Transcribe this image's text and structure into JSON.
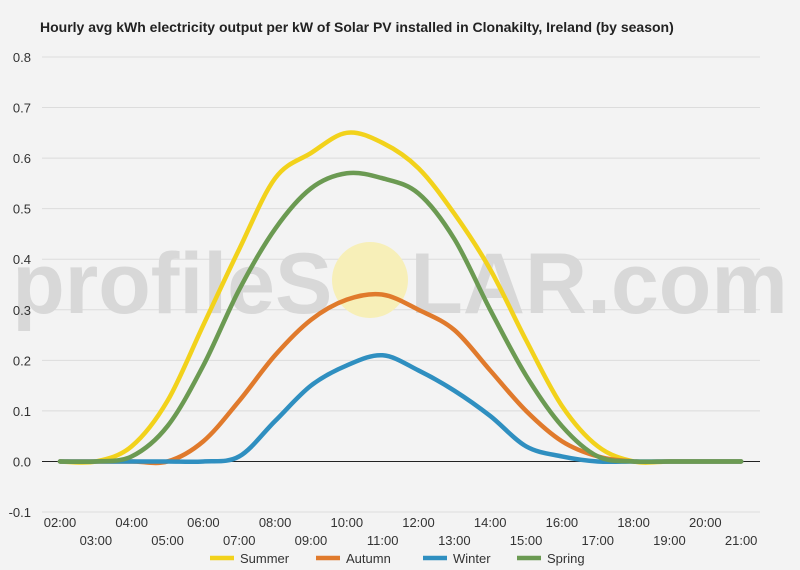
{
  "chart_data": {
    "type": "line",
    "title": "Hourly avg kWh electricity output per kW of Solar PV installed in Clonakilty, Ireland (by season)",
    "xlabel": "",
    "ylabel": "",
    "x": [
      "02:00",
      "03:00",
      "04:00",
      "05:00",
      "06:00",
      "07:00",
      "08:00",
      "09:00",
      "10:00",
      "11:00",
      "12:00",
      "13:00",
      "14:00",
      "15:00",
      "16:00",
      "17:00",
      "18:00",
      "19:00",
      "20:00",
      "21:00"
    ],
    "ylim": [
      -0.1,
      0.8
    ],
    "yticks": [
      "-0.1",
      "0.0",
      "0.1",
      "0.2",
      "0.3",
      "0.4",
      "0.5",
      "0.6",
      "0.7",
      "0.8"
    ],
    "grid": true,
    "legend_position": "bottom",
    "series": [
      {
        "name": "Summer",
        "color": "#f2d21b",
        "values": [
          0.0,
          0.0,
          0.03,
          0.12,
          0.27,
          0.42,
          0.56,
          0.61,
          0.65,
          0.63,
          0.58,
          0.49,
          0.38,
          0.24,
          0.11,
          0.03,
          0.0,
          0.0,
          0.0,
          0.0
        ]
      },
      {
        "name": "Autumn",
        "color": "#e07a2c",
        "values": [
          0.0,
          0.0,
          0.0,
          0.0,
          0.04,
          0.12,
          0.21,
          0.28,
          0.32,
          0.33,
          0.3,
          0.26,
          0.18,
          0.1,
          0.04,
          0.01,
          0.0,
          0.0,
          0.0,
          0.0
        ]
      },
      {
        "name": "Winter",
        "color": "#2f8fc0",
        "values": [
          0.0,
          0.0,
          0.0,
          0.0,
          0.0,
          0.01,
          0.08,
          0.15,
          0.19,
          0.21,
          0.18,
          0.14,
          0.09,
          0.03,
          0.01,
          0.0,
          0.0,
          0.0,
          0.0,
          0.0
        ]
      },
      {
        "name": "Spring",
        "color": "#6b9a52",
        "values": [
          0.0,
          0.0,
          0.01,
          0.07,
          0.19,
          0.34,
          0.46,
          0.54,
          0.57,
          0.56,
          0.53,
          0.44,
          0.3,
          0.17,
          0.07,
          0.01,
          0.0,
          0.0,
          0.0,
          0.0
        ]
      }
    ]
  },
  "watermark": {
    "text_before": "profileS",
    "text_after": "LAR.com",
    "sun_color": "#f7efb8"
  }
}
